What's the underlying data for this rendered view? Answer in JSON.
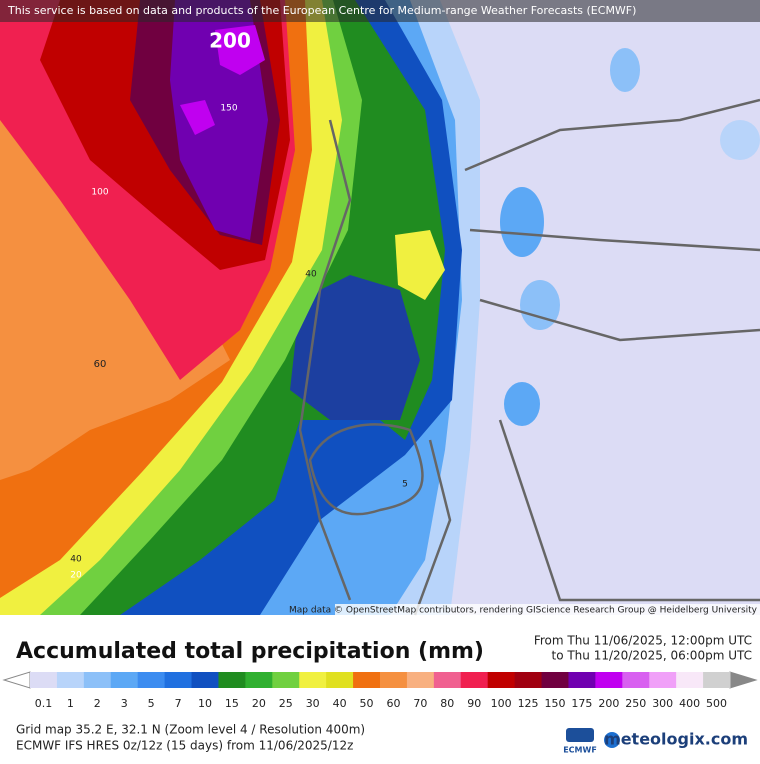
{
  "banner": "This service is based on data and products of the European Centre for Medium-range Weather Forecasts (ECMWF)",
  "map": {
    "attribution": "Map data © OpenStreetMap contributors, rendering GIScience Research Group @ Heidelberg University",
    "contour_labels": [
      200,
      150,
      100,
      40,
      60,
      40,
      20,
      5
    ]
  },
  "footer": {
    "title": "Accumulated total precipitation (mm)",
    "time_from": "From Thu 11/06/2025, 12:00pm UTC",
    "time_to": "to Thu 11/20/2025, 06:00pm UTC",
    "legend": {
      "labels": [
        0.1,
        1,
        2,
        3,
        5,
        7,
        10,
        15,
        20,
        25,
        30,
        40,
        50,
        60,
        70,
        80,
        90,
        100,
        125,
        150,
        175,
        200,
        250,
        300,
        400,
        500
      ],
      "colors": [
        "#dcdcf5",
        "#b8d4fa",
        "#8cc0f8",
        "#5ca8f5",
        "#3c8cf0",
        "#2070e0",
        "#1050c0",
        "#208c20",
        "#30b030",
        "#70d040",
        "#f0f040",
        "#e0e020",
        "#f07010",
        "#f59040",
        "#f8b080",
        "#f06090",
        "#f02050",
        "#c00000",
        "#a00010",
        "#700040",
        "#7000b0",
        "#c000f0",
        "#d860f0",
        "#f0a0f8",
        "#f8e8f8",
        "#d0d0d0"
      ]
    },
    "grid_info": "Grid map 35.2 E, 32.1 N (Zoom level 4 / Resolution 400m)",
    "model_info": "ECMWF IFS HRES 0z/12z (15 days) from  11/06/2025/12z",
    "logos": [
      "ECMWF",
      "meteologix.com"
    ]
  }
}
